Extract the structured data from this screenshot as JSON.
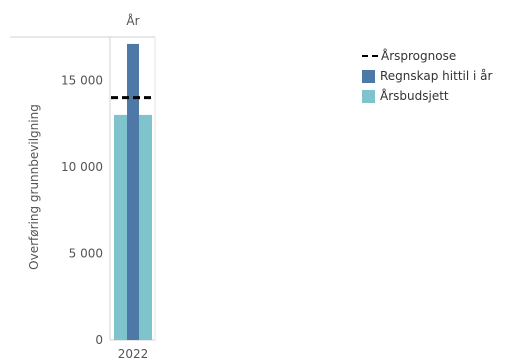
{
  "chart_data": {
    "type": "bar",
    "column_header": "År",
    "categories": [
      "2022"
    ],
    "ylabel": "Overføring grunnbevilgning",
    "ylim": [
      0,
      17500
    ],
    "yticks": [
      0,
      5000,
      10000,
      15000
    ],
    "ytick_labels": [
      "0",
      "5 000",
      "10 000",
      "15 000"
    ],
    "series": [
      {
        "name": "Årsbudsjett",
        "values": [
          13000
        ],
        "color": "#7fc4cc"
      },
      {
        "name": "Regnskap hittil i år",
        "values": [
          17100
        ],
        "color": "#4e79a7"
      },
      {
        "name": "Årsprognose",
        "values": [
          14000
        ],
        "color": "#000000",
        "style": "dashed-line"
      }
    ],
    "legend": {
      "position": "right",
      "items": [
        {
          "marker": "dashed-line",
          "label": "Årsprognose"
        },
        {
          "marker": "swatch",
          "label": "Regnskap hittil i år",
          "color": "#4e79a7"
        },
        {
          "marker": "swatch",
          "label": "Årsbudsjett",
          "color": "#7fc4cc"
        }
      ]
    }
  }
}
